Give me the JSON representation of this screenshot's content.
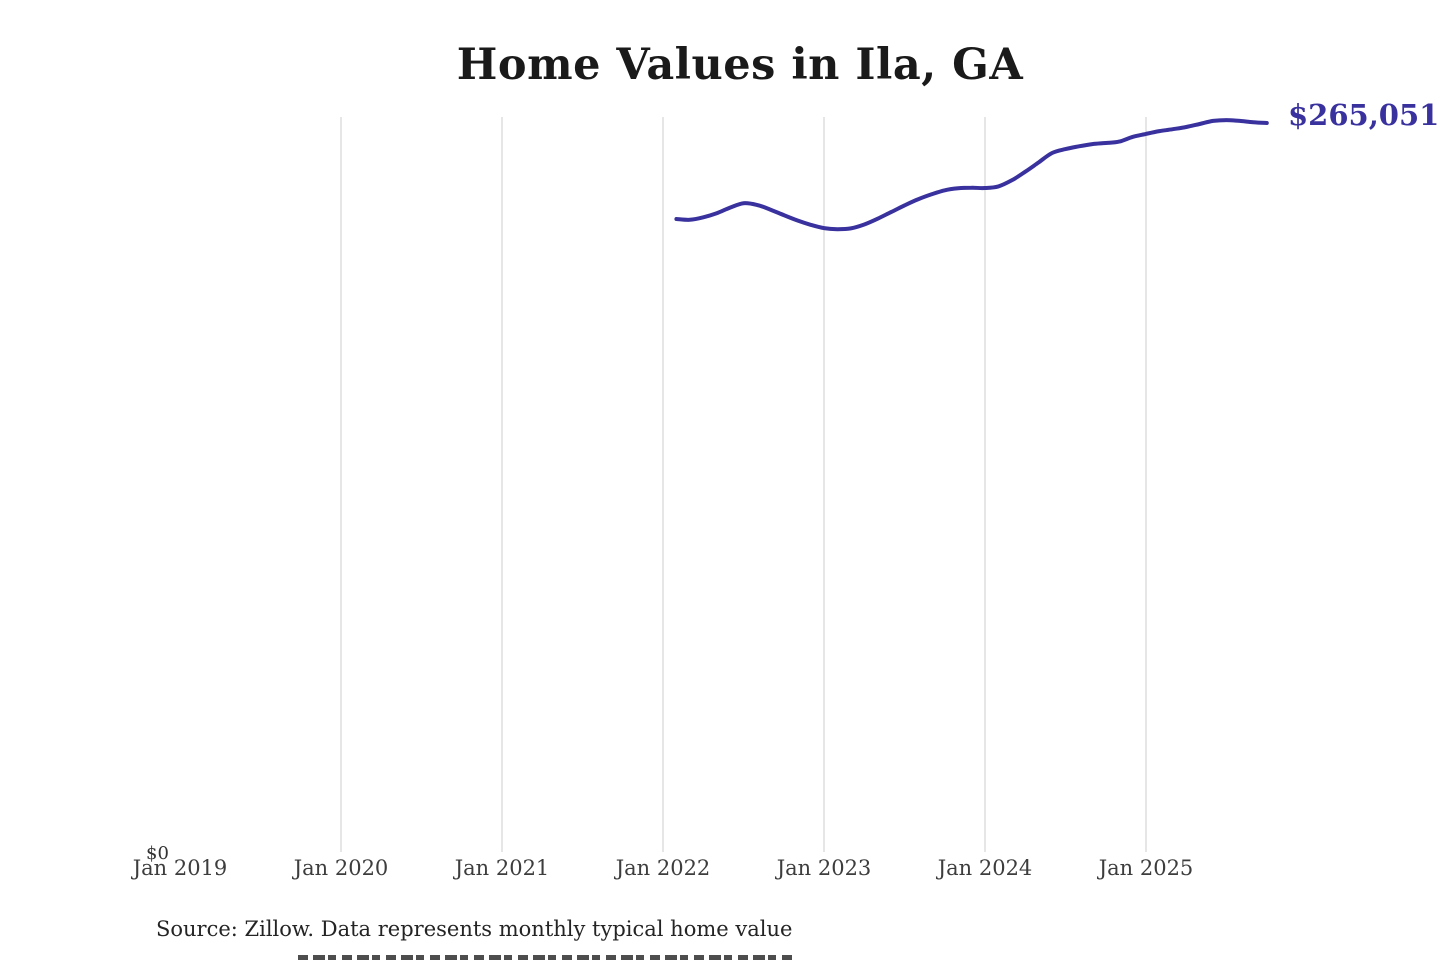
{
  "title": "Home Values in Ila, GA",
  "source_note": "Source: Zillow. Data represents monthly typical home value",
  "colors": {
    "background": "#ffffff",
    "line": "#39319d",
    "value_label": "#39319d",
    "gridline": "#cccccc",
    "title_text": "#1a1a1a",
    "tick_text": "#3d3d3d",
    "source_text": "#242424"
  },
  "chart_data": {
    "type": "line",
    "title": "Home Values in Ila, GA",
    "series_name": "Monthly typical home value",
    "unit": "USD",
    "x": [
      "2022-02",
      "2022-03",
      "2022-04",
      "2022-05",
      "2022-06",
      "2022-07",
      "2022-08",
      "2022-09",
      "2022-10",
      "2022-11",
      "2022-12",
      "2023-01",
      "2023-02",
      "2023-03",
      "2023-04",
      "2023-05",
      "2023-06",
      "2023-07",
      "2023-08",
      "2023-09",
      "2023-10",
      "2023-11",
      "2023-12",
      "2024-01",
      "2024-02",
      "2024-03",
      "2024-04",
      "2024-05",
      "2024-06",
      "2024-07",
      "2024-08",
      "2024-09",
      "2024-10",
      "2024-11",
      "2024-12",
      "2025-01",
      "2025-02",
      "2025-03",
      "2025-04",
      "2025-05",
      "2025-06",
      "2025-07",
      "2025-08",
      "2025-09",
      "2025-10"
    ],
    "values": [
      230300,
      230000,
      230900,
      232400,
      234400,
      236000,
      235400,
      233700,
      231700,
      229800,
      228200,
      227000,
      226600,
      226900,
      228300,
      230400,
      232800,
      235200,
      237400,
      239200,
      240700,
      241400,
      241600,
      241500,
      242100,
      244300,
      247400,
      250800,
      254200,
      255600,
      256600,
      257400,
      257800,
      258300,
      260000,
      261100,
      262100,
      262800,
      263600,
      264700,
      265800,
      266100,
      265800,
      265300,
      265051
    ],
    "latest_value": 265051,
    "latest_value_label": "$265,051",
    "y_zero_label": "$0",
    "ylim": [
      0,
      267000
    ],
    "x_axis_start": "Jan 2019",
    "x_ticks": [
      {
        "label": "Jan 2019",
        "gridline": false
      },
      {
        "label": "Jan 2020",
        "gridline": true
      },
      {
        "label": "Jan 2021",
        "gridline": true
      },
      {
        "label": "Jan 2022",
        "gridline": true
      },
      {
        "label": "Jan 2023",
        "gridline": true
      },
      {
        "label": "Jan 2024",
        "gridline": true
      },
      {
        "label": "Jan 2025",
        "gridline": true
      }
    ],
    "legend": "none",
    "grid": "vertical yearly gridlines only"
  }
}
